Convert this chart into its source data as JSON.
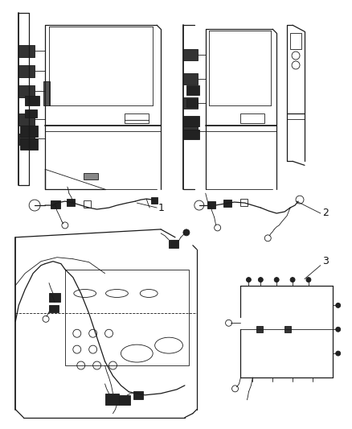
{
  "background_color": "#ffffff",
  "figure_width": 4.38,
  "figure_height": 5.33,
  "dpi": 100,
  "line_color": "#1a1a1a",
  "annotation_color": "#111111",
  "label_fontsize": 9,
  "lw_thin": 0.6,
  "lw_med": 0.9,
  "lw_thick": 1.3
}
